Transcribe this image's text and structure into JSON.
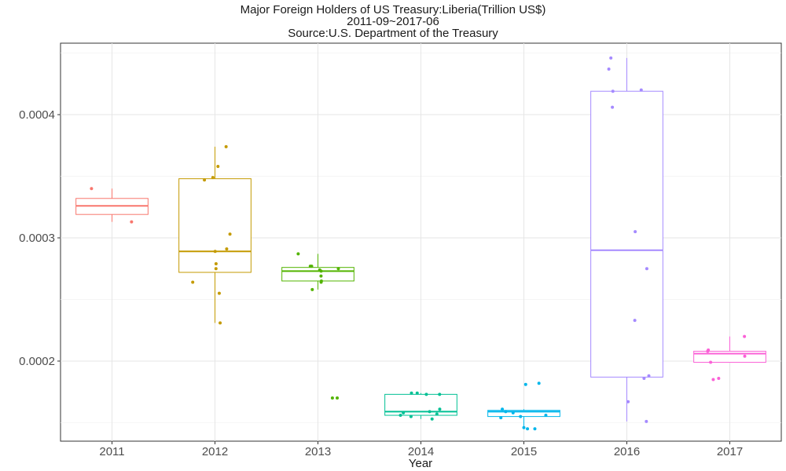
{
  "chart_data": {
    "type": "box",
    "title": "Major Foreign Holders of US Treasury:Liberia(Trillion US$)",
    "subtitle": "2011-09~2017-06",
    "source": "Source:U.S. Department of the Treasury",
    "xlabel": "Year",
    "ylabel": "",
    "categories": [
      "2011",
      "2012",
      "2013",
      "2014",
      "2015",
      "2016",
      "2017"
    ],
    "yticks": [
      0.0002,
      0.0003,
      0.0004
    ],
    "ytick_labels": [
      "0.0002",
      "0.0003",
      "0.0004"
    ],
    "ylim": [
      0.000135,
      0.000458
    ],
    "grid": true,
    "legend": "none",
    "series": [
      {
        "name": "2011",
        "color": "#F8766D",
        "box": {
          "whisker_low": 0.000313,
          "q1": 0.000319,
          "median": 0.000326,
          "q3": 0.000332,
          "whisker_high": 0.00034
        },
        "points": [
          0.000313,
          0.00034
        ]
      },
      {
        "name": "2012",
        "color": "#C49A00",
        "box": {
          "whisker_low": 0.000231,
          "q1": 0.000272,
          "median": 0.000289,
          "q3": 0.000348,
          "whisker_high": 0.000374
        },
        "points": [
          0.000374,
          0.000358,
          0.000349,
          0.000347,
          0.000303,
          0.000291,
          0.000289,
          0.000279,
          0.000275,
          0.000264,
          0.000255,
          0.000231
        ]
      },
      {
        "name": "2013",
        "color": "#53B400",
        "box": {
          "whisker_low": 0.000258,
          "q1": 0.000265,
          "median": 0.000273,
          "q3": 0.000276,
          "whisker_high": 0.000287
        },
        "points": [
          0.000287,
          0.000277,
          0.000277,
          0.000275,
          0.000274,
          0.000273,
          0.000269,
          0.000265,
          0.000264,
          0.000258,
          0.00017,
          0.00017
        ]
      },
      {
        "name": "2014",
        "color": "#00C094",
        "box": {
          "whisker_low": 0.000153,
          "q1": 0.000156,
          "median": 0.000159,
          "q3": 0.000173,
          "whisker_high": 0.000174
        },
        "points": [
          0.000174,
          0.000174,
          0.000173,
          0.000173,
          0.000161,
          0.000159,
          0.000158,
          0.000157,
          0.000156,
          0.000155,
          0.000153
        ]
      },
      {
        "name": "2015",
        "color": "#00B6EB",
        "box": {
          "whisker_low": 0.000145,
          "q1": 0.000155,
          "median": 0.000159,
          "q3": 0.00016,
          "whisker_high": 0.000161
        },
        "points": [
          0.000182,
          0.000181,
          0.000161,
          0.000159,
          0.000158,
          0.000156,
          0.000155,
          0.000154,
          0.000146,
          0.000145,
          0.000145
        ]
      },
      {
        "name": "2016",
        "color": "#A58AFF",
        "box": {
          "whisker_low": 0.000151,
          "q1": 0.000187,
          "median": 0.00029,
          "q3": 0.000419,
          "whisker_high": 0.000446
        },
        "points": [
          0.000446,
          0.000437,
          0.00042,
          0.000419,
          0.000406,
          0.000305,
          0.000275,
          0.000233,
          0.000188,
          0.000186,
          0.000167,
          0.000151
        ]
      },
      {
        "name": "2017",
        "color": "#FB61D7",
        "box": {
          "whisker_low": 0.000199,
          "q1": 0.000199,
          "median": 0.000206,
          "q3": 0.000208,
          "whisker_high": 0.00022
        },
        "points": [
          0.00022,
          0.000209,
          0.000208,
          0.000204,
          0.000199,
          0.000186,
          0.000185
        ]
      }
    ]
  }
}
